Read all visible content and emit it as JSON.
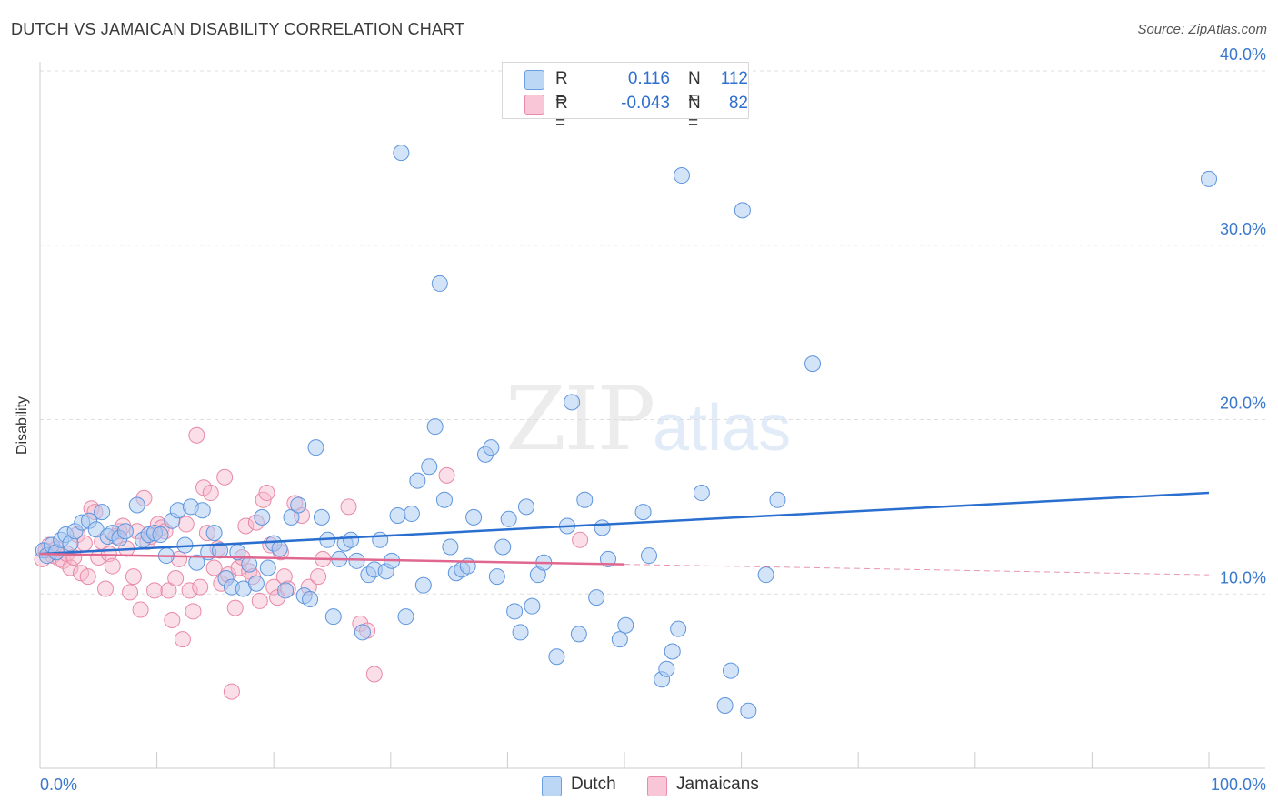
{
  "header": {
    "title": "DUTCH VS JAMAICAN DISABILITY CORRELATION CHART",
    "source": "Source: ZipAtlas.com"
  },
  "watermark": {
    "zip": "ZIP",
    "atlas": "atlas"
  },
  "legend": {
    "dutch": {
      "r_label": "R =",
      "r_value": "0.116",
      "n_label": "N =",
      "n_value": "112"
    },
    "jamaicans": {
      "r_label": "R =",
      "r_value": "-0.043",
      "n_label": "N =",
      "n_value": "82"
    }
  },
  "colors": {
    "dutch_fill": "#a9c9f2",
    "dutch_stroke": "#5e95dd",
    "dutch_line": "#2a6fcf",
    "jam_fill": "#f7b9cc",
    "jam_stroke": "#e889a6",
    "jam_line": "#e0678f",
    "tick_text": "#3a78cc",
    "grid": "#dddddd"
  },
  "chart_data": {
    "type": "scatter",
    "title": "DUTCH VS JAMAICAN DISABILITY CORRELATION CHART",
    "xlabel": "",
    "ylabel": "Disability",
    "xlim": [
      0,
      100
    ],
    "ylim": [
      0,
      40
    ],
    "x_tick_labels": [
      "0.0%",
      "100.0%"
    ],
    "y_ticks": [
      10,
      20,
      30,
      40
    ],
    "y_tick_labels": [
      "10.0%",
      "20.0%",
      "30.0%",
      "40.0%"
    ],
    "grid": true,
    "legend_position": "top-center",
    "series": [
      {
        "name": "Dutch",
        "trend": {
          "x": [
            0,
            100
          ],
          "y": [
            12.3,
            15.8
          ]
        },
        "points": [
          [
            0.3,
            12.5
          ],
          [
            0.6,
            12.2
          ],
          [
            1.0,
            12.8
          ],
          [
            1.4,
            12.4
          ],
          [
            1.8,
            13.1
          ],
          [
            2.2,
            13.4
          ],
          [
            2.6,
            12.9
          ],
          [
            3.0,
            13.6
          ],
          [
            3.6,
            14.1
          ],
          [
            4.2,
            14.2
          ],
          [
            4.8,
            13.7
          ],
          [
            5.3,
            14.7
          ],
          [
            5.8,
            13.3
          ],
          [
            6.2,
            13.5
          ],
          [
            6.8,
            13.2
          ],
          [
            7.3,
            13.6
          ],
          [
            8.3,
            15.1
          ],
          [
            8.8,
            13.1
          ],
          [
            9.3,
            13.4
          ],
          [
            9.8,
            13.5
          ],
          [
            10.3,
            13.4
          ],
          [
            10.8,
            12.2
          ],
          [
            11.3,
            14.2
          ],
          [
            11.8,
            14.8
          ],
          [
            12.4,
            12.8
          ],
          [
            12.9,
            15.0
          ],
          [
            13.4,
            11.8
          ],
          [
            13.9,
            14.8
          ],
          [
            14.4,
            12.4
          ],
          [
            14.9,
            13.5
          ],
          [
            15.4,
            12.5
          ],
          [
            15.9,
            10.9
          ],
          [
            16.4,
            10.4
          ],
          [
            16.9,
            12.4
          ],
          [
            17.4,
            10.3
          ],
          [
            17.9,
            11.7
          ],
          [
            18.5,
            10.6
          ],
          [
            19.0,
            14.4
          ],
          [
            19.5,
            11.5
          ],
          [
            20.0,
            12.9
          ],
          [
            20.5,
            12.6
          ],
          [
            21.0,
            10.2
          ],
          [
            21.5,
            14.4
          ],
          [
            22.1,
            15.1
          ],
          [
            22.6,
            9.9
          ],
          [
            23.1,
            9.7
          ],
          [
            23.6,
            18.4
          ],
          [
            24.1,
            14.4
          ],
          [
            24.6,
            13.1
          ],
          [
            25.1,
            8.7
          ],
          [
            25.6,
            12.0
          ],
          [
            26.1,
            12.9
          ],
          [
            26.6,
            13.1
          ],
          [
            27.1,
            11.9
          ],
          [
            27.6,
            7.8
          ],
          [
            28.1,
            11.1
          ],
          [
            28.6,
            11.4
          ],
          [
            29.1,
            13.1
          ],
          [
            29.6,
            11.3
          ],
          [
            30.1,
            11.9
          ],
          [
            30.6,
            14.5
          ],
          [
            30.9,
            35.3
          ],
          [
            31.3,
            8.7
          ],
          [
            31.8,
            14.6
          ],
          [
            32.3,
            16.5
          ],
          [
            32.8,
            10.5
          ],
          [
            33.3,
            17.3
          ],
          [
            33.8,
            19.6
          ],
          [
            34.2,
            27.8
          ],
          [
            34.6,
            15.4
          ],
          [
            35.1,
            12.7
          ],
          [
            35.6,
            11.2
          ],
          [
            36.1,
            11.4
          ],
          [
            36.6,
            11.6
          ],
          [
            37.1,
            14.4
          ],
          [
            38.1,
            18.0
          ],
          [
            38.6,
            18.4
          ],
          [
            39.1,
            11.0
          ],
          [
            39.6,
            12.7
          ],
          [
            40.1,
            14.3
          ],
          [
            40.6,
            9.0
          ],
          [
            41.1,
            7.8
          ],
          [
            41.6,
            15.0
          ],
          [
            42.1,
            9.3
          ],
          [
            42.6,
            11.1
          ],
          [
            43.1,
            11.8
          ],
          [
            44.2,
            6.4
          ],
          [
            45.1,
            13.9
          ],
          [
            45.5,
            21.0
          ],
          [
            46.1,
            7.7
          ],
          [
            46.6,
            15.4
          ],
          [
            47.6,
            9.8
          ],
          [
            48.1,
            13.8
          ],
          [
            48.6,
            12.0
          ],
          [
            49.6,
            7.4
          ],
          [
            50.1,
            8.2
          ],
          [
            51.6,
            14.7
          ],
          [
            52.1,
            12.2
          ],
          [
            53.2,
            5.1
          ],
          [
            53.6,
            5.7
          ],
          [
            54.1,
            6.7
          ],
          [
            54.6,
            8.0
          ],
          [
            54.9,
            34.0
          ],
          [
            56.6,
            15.8
          ],
          [
            58.6,
            3.6
          ],
          [
            59.1,
            5.6
          ],
          [
            60.1,
            32.0
          ],
          [
            60.6,
            3.3
          ],
          [
            62.1,
            11.1
          ],
          [
            63.1,
            15.4
          ],
          [
            66.1,
            23.2
          ],
          [
            100.0,
            33.8
          ]
        ]
      },
      {
        "name": "Jamaicans",
        "trend": {
          "x": [
            0,
            50
          ],
          "y": [
            12.3,
            11.7
          ],
          "extension": {
            "x": [
              50,
              100
            ],
            "y": [
              11.7,
              11.1
            ]
          }
        },
        "points": [
          [
            0.2,
            12.0
          ],
          [
            0.5,
            12.5
          ],
          [
            0.8,
            12.8
          ],
          [
            1.1,
            12.2
          ],
          [
            1.4,
            12.6
          ],
          [
            1.7,
            12.0
          ],
          [
            2.0,
            11.9
          ],
          [
            2.3,
            12.3
          ],
          [
            2.6,
            11.5
          ],
          [
            2.9,
            12.1
          ],
          [
            3.2,
            13.4
          ],
          [
            3.5,
            11.2
          ],
          [
            3.8,
            12.9
          ],
          [
            4.1,
            11.0
          ],
          [
            4.4,
            14.9
          ],
          [
            4.7,
            14.7
          ],
          [
            5.0,
            12.1
          ],
          [
            5.3,
            13.0
          ],
          [
            5.6,
            10.3
          ],
          [
            5.9,
            12.3
          ],
          [
            6.2,
            11.6
          ],
          [
            6.5,
            13.3
          ],
          [
            6.8,
            13.6
          ],
          [
            7.1,
            13.9
          ],
          [
            7.4,
            12.6
          ],
          [
            7.7,
            10.1
          ],
          [
            8.0,
            11.0
          ],
          [
            8.3,
            13.6
          ],
          [
            8.6,
            9.1
          ],
          [
            8.9,
            15.5
          ],
          [
            9.2,
            13.0
          ],
          [
            9.5,
            13.3
          ],
          [
            9.8,
            10.2
          ],
          [
            10.1,
            14.0
          ],
          [
            10.4,
            13.8
          ],
          [
            10.7,
            13.6
          ],
          [
            11.0,
            10.2
          ],
          [
            11.3,
            8.5
          ],
          [
            11.6,
            10.9
          ],
          [
            11.9,
            12.0
          ],
          [
            12.2,
            7.4
          ],
          [
            12.5,
            14.0
          ],
          [
            12.8,
            10.2
          ],
          [
            13.1,
            9.0
          ],
          [
            13.4,
            19.1
          ],
          [
            13.7,
            10.4
          ],
          [
            14.0,
            16.1
          ],
          [
            14.3,
            13.5
          ],
          [
            14.6,
            15.8
          ],
          [
            14.9,
            11.5
          ],
          [
            15.2,
            12.6
          ],
          [
            15.5,
            10.6
          ],
          [
            15.8,
            16.7
          ],
          [
            16.1,
            11.1
          ],
          [
            16.4,
            4.4
          ],
          [
            16.7,
            9.2
          ],
          [
            17.0,
            11.5
          ],
          [
            17.3,
            12.1
          ],
          [
            17.6,
            13.9
          ],
          [
            17.9,
            11.3
          ],
          [
            18.2,
            11.0
          ],
          [
            18.5,
            14.1
          ],
          [
            18.8,
            9.6
          ],
          [
            19.1,
            15.4
          ],
          [
            19.4,
            15.8
          ],
          [
            19.7,
            12.8
          ],
          [
            20.0,
            10.4
          ],
          [
            20.3,
            9.8
          ],
          [
            20.6,
            12.4
          ],
          [
            20.9,
            11.0
          ],
          [
            21.2,
            10.3
          ],
          [
            21.8,
            15.2
          ],
          [
            22.4,
            14.5
          ],
          [
            23.0,
            10.4
          ],
          [
            23.8,
            11.0
          ],
          [
            24.2,
            12.0
          ],
          [
            26.4,
            15.0
          ],
          [
            27.4,
            8.3
          ],
          [
            28.0,
            7.9
          ],
          [
            28.6,
            5.4
          ],
          [
            34.8,
            16.8
          ],
          [
            46.2,
            13.1
          ]
        ]
      }
    ]
  }
}
